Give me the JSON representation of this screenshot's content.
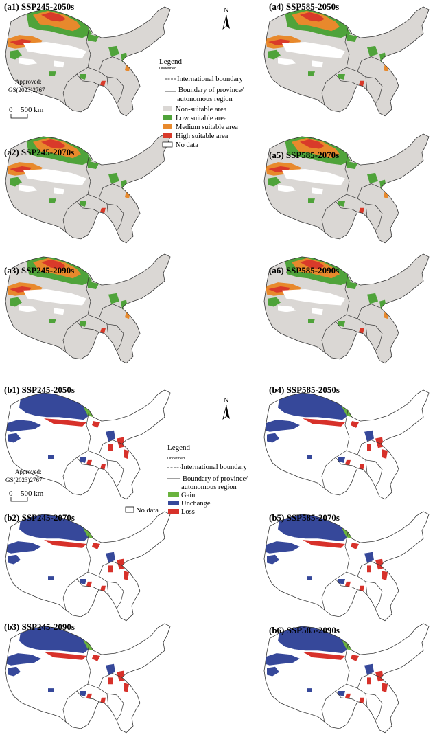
{
  "figure": {
    "panels_a": [
      {
        "id": "a1",
        "title": "(a1) SSP245-2050s"
      },
      {
        "id": "a2",
        "title": "(a2) SSP245-2070s"
      },
      {
        "id": "a3",
        "title": "(a3) SSP245-2090s"
      },
      {
        "id": "a4",
        "title": "(a4) SSP585-2050s"
      },
      {
        "id": "a5",
        "title": "(a5) SSP585-2070s"
      },
      {
        "id": "a6",
        "title": "(a6) SSP585-2090s"
      }
    ],
    "panels_b": [
      {
        "id": "b1",
        "title": "(b1) SSP245-2050s"
      },
      {
        "id": "b2",
        "title": "(b2) SSP245-2070s"
      },
      {
        "id": "b3",
        "title": "(b3) SSP245-2090s"
      },
      {
        "id": "b4",
        "title": "(b4) SSP585-2050s"
      },
      {
        "id": "b5",
        "title": "(b5) SSP585-2070s"
      },
      {
        "id": "b6",
        "title": "(b6) SSP585-2090s"
      }
    ],
    "north_label": "N",
    "approved_label": "Approved:",
    "approval_code": "GS(2023)2767",
    "scale_zero": "0",
    "scale_text": "500 km",
    "legend_a": {
      "title": "Legend",
      "subtitle": "Undefined",
      "boundary_items": [
        "International boundary",
        "Boundary of province/",
        "autonomous region"
      ],
      "classes": [
        {
          "label": "Non-suitable area",
          "color": "#dad7d4"
        },
        {
          "label": "Low suitable area",
          "color": "#4fa33a"
        },
        {
          "label": "Medium suitable area",
          "color": "#e8892c"
        },
        {
          "label": "High suitable area",
          "color": "#d93a2a"
        },
        {
          "label": "No data",
          "color": "#ffffff"
        }
      ]
    },
    "legend_b": {
      "title": "Legend",
      "subtitle": "Undefined",
      "boundary_items": [
        "International boundary",
        "Boundary of province/",
        "autonomous region"
      ],
      "classes": [
        {
          "label": "Gain",
          "color": "#6ab33e"
        },
        {
          "label": "Unchange",
          "color": "#36489a"
        },
        {
          "label": "Loss",
          "color": "#d7312a"
        }
      ],
      "no_data": {
        "label": "No data",
        "color": "#ffffff"
      }
    }
  }
}
